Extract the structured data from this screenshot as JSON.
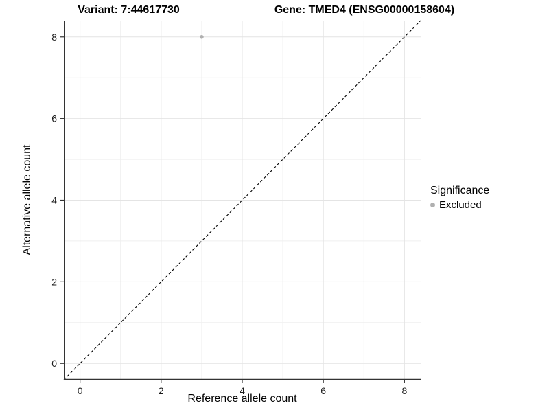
{
  "titles": {
    "variant": "Variant: 7:44617730",
    "gene": "Gene: TMED4 (ENSG00000158604)"
  },
  "axes": {
    "x": {
      "label": "Reference allele count"
    },
    "y": {
      "label": "Alternative allele count"
    }
  },
  "legend": {
    "title": "Significance",
    "items": [
      {
        "label": "Excluded",
        "color": "#b0b0b0",
        "marker": "dot"
      }
    ]
  },
  "chart_data": {
    "type": "scatter",
    "title_left": "Variant: 7:44617730",
    "title_right": "Gene: TMED4 (ENSG00000158604)",
    "xlabel": "Reference allele count",
    "ylabel": "Alternative allele count",
    "xlim": [
      -0.4,
      8.4
    ],
    "ylim": [
      -0.4,
      8.4
    ],
    "xticks": [
      0,
      2,
      4,
      6,
      8
    ],
    "yticks": [
      0,
      2,
      4,
      6,
      8
    ],
    "xticks_minor": [
      1,
      3,
      5,
      7
    ],
    "yticks_minor": [
      1,
      3,
      5,
      7
    ],
    "grid": "on",
    "legend_position": "right",
    "series": [
      {
        "name": "Excluded",
        "color": "#b0b0b0",
        "points": [
          {
            "x": 3,
            "y": 8
          }
        ]
      }
    ],
    "reference_line": {
      "type": "identity",
      "slope": 1,
      "intercept": 0,
      "style": "dashed",
      "color": "#000000"
    }
  },
  "colors": {
    "background": "#ffffff",
    "grid_major": "#e4e4e4",
    "grid_minor": "#efefef",
    "axis_line": "#333333",
    "tick_mark": "#333333",
    "point": "#b0b0b0",
    "dashed_line": "#000000"
  }
}
